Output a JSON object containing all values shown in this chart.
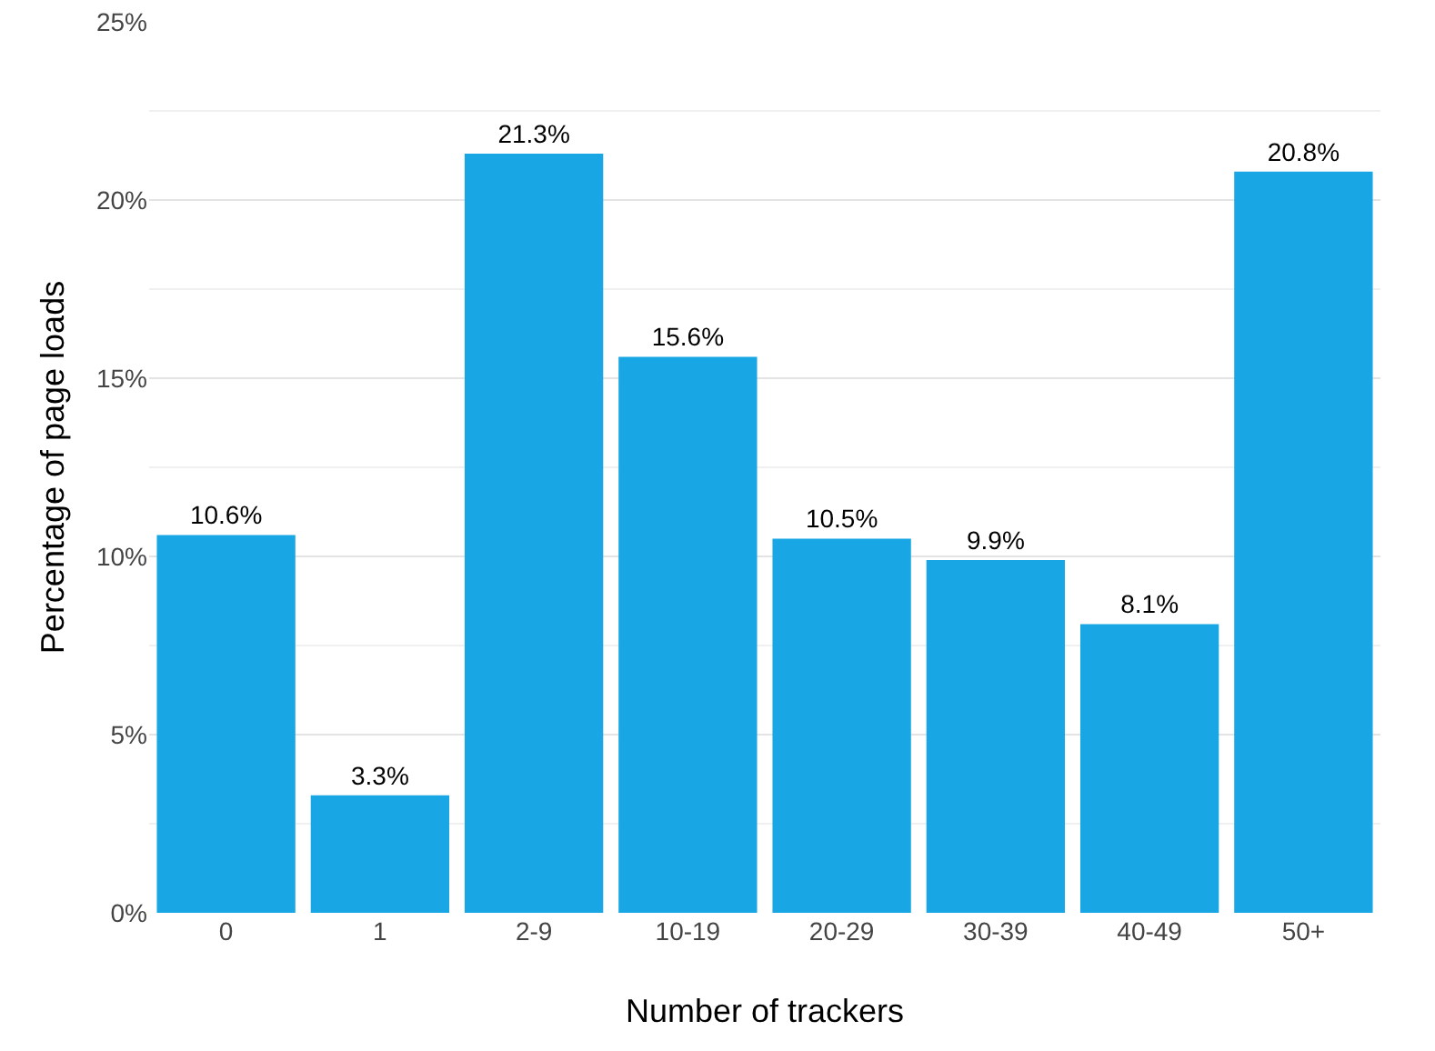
{
  "chart_data": {
    "type": "bar",
    "xlabel": "Number of trackers",
    "ylabel": "Percentage of page loads",
    "categories": [
      "0",
      "1",
      "2-9",
      "10-19",
      "20-29",
      "30-39",
      "40-49",
      "50+"
    ],
    "values": [
      10.6,
      3.3,
      21.3,
      15.6,
      10.5,
      9.9,
      8.1,
      20.8
    ],
    "value_labels": [
      "10.6%",
      "3.3%",
      "21.3%",
      "15.6%",
      "10.5%",
      "9.9%",
      "8.1%",
      "20.8%"
    ],
    "color": "#18a6e4",
    "ylim": [
      0,
      25
    ],
    "yticks": [
      {
        "value": 0,
        "label": "0%"
      },
      {
        "value": 5,
        "label": "5%"
      },
      {
        "value": 10,
        "label": "10%"
      },
      {
        "value": 15,
        "label": "15%"
      },
      {
        "value": 20,
        "label": "20%"
      },
      {
        "value": 25,
        "label": "25%"
      }
    ],
    "grid": "y"
  }
}
